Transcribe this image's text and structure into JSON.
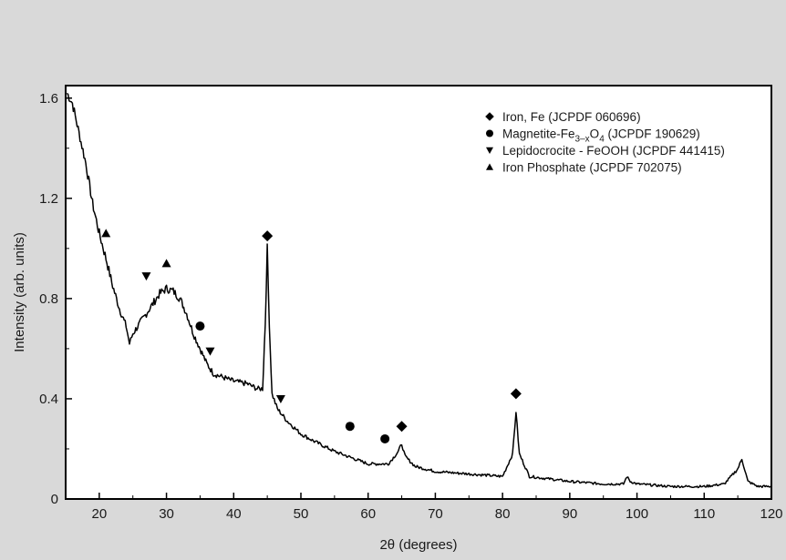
{
  "chart_data": {
    "type": "line",
    "xlabel": "2θ (degrees)",
    "ylabel": "Intensity (arb. units)",
    "xlim": [
      15,
      120
    ],
    "ylim": [
      0,
      1.65
    ],
    "x_ticks": [
      20,
      30,
      40,
      50,
      60,
      70,
      80,
      90,
      100,
      110,
      120
    ],
    "y_ticks": [
      0,
      0.4,
      0.8,
      1.2,
      1.6
    ],
    "y_tick_labels": [
      "0",
      "0.4",
      "0.8",
      "1.2",
      "1.6"
    ],
    "grid": false,
    "legend_position": "top-right",
    "legend": [
      {
        "marker": "diamond",
        "label_html": "Iron, Fe (JCPDF 060696)"
      },
      {
        "marker": "circle",
        "label_html": "Magnetite-Fe<tspan font-size=\"10\" dy=\"4\">3–x</tspan><tspan dy=\"-4\">O</tspan><tspan font-size=\"10\" dy=\"4\">4</tspan><tspan dy=\"-4\"> (JCPDF 190629)</tspan>"
      },
      {
        "marker": "triangle-down",
        "label_html": "Lepidocrocite - FeOOH (JCPDF 441415)"
      },
      {
        "marker": "triangle-up",
        "label_html": "Iron Phosphate (JCPDF 702075)"
      }
    ],
    "series": [
      {
        "values_xy": [
          [
            15.2,
            1.62
          ],
          [
            16,
            1.58
          ],
          [
            17,
            1.46
          ],
          [
            18,
            1.34
          ],
          [
            19,
            1.18
          ],
          [
            20,
            1.06
          ],
          [
            21,
            0.96
          ],
          [
            22,
            0.85
          ],
          [
            23,
            0.76
          ],
          [
            24,
            0.69
          ],
          [
            24.5,
            0.62
          ],
          [
            25,
            0.66
          ],
          [
            26,
            0.7
          ],
          [
            27,
            0.74
          ],
          [
            28,
            0.78
          ],
          [
            29,
            0.82
          ],
          [
            30,
            0.84
          ],
          [
            31,
            0.83
          ],
          [
            32,
            0.8
          ],
          [
            33,
            0.74
          ],
          [
            34,
            0.66
          ],
          [
            35,
            0.6
          ],
          [
            36,
            0.54
          ],
          [
            37,
            0.5
          ],
          [
            38,
            0.49
          ],
          [
            40,
            0.47
          ],
          [
            42,
            0.46
          ],
          [
            43.5,
            0.44
          ],
          [
            44.3,
            0.44
          ],
          [
            44.7,
            0.7
          ],
          [
            45,
            1.0
          ],
          [
            45.3,
            0.7
          ],
          [
            45.7,
            0.42
          ],
          [
            46.5,
            0.36
          ],
          [
            48,
            0.31
          ],
          [
            50,
            0.26
          ],
          [
            52,
            0.23
          ],
          [
            55,
            0.19
          ],
          [
            57,
            0.17
          ],
          [
            60,
            0.14
          ],
          [
            63,
            0.14
          ],
          [
            64.5,
            0.19
          ],
          [
            65,
            0.22
          ],
          [
            65.5,
            0.17
          ],
          [
            67,
            0.13
          ],
          [
            70,
            0.11
          ],
          [
            75,
            0.1
          ],
          [
            80,
            0.09
          ],
          [
            81.5,
            0.18
          ],
          [
            82,
            0.35
          ],
          [
            82.5,
            0.18
          ],
          [
            84,
            0.09
          ],
          [
            90,
            0.07
          ],
          [
            95,
            0.06
          ],
          [
            98,
            0.06
          ],
          [
            98.5,
            0.09
          ],
          [
            99,
            0.07
          ],
          [
            100,
            0.06
          ],
          [
            105,
            0.05
          ],
          [
            110,
            0.05
          ],
          [
            113,
            0.06
          ],
          [
            115,
            0.12
          ],
          [
            115.6,
            0.16
          ],
          [
            116.5,
            0.07
          ],
          [
            118,
            0.05
          ],
          [
            120,
            0.05
          ]
        ]
      }
    ],
    "annotations": [
      {
        "marker": "triangle-up",
        "x": 21,
        "y": 1.06
      },
      {
        "marker": "triangle-down",
        "x": 27,
        "y": 0.89
      },
      {
        "marker": "triangle-up",
        "x": 30,
        "y": 0.94
      },
      {
        "marker": "circle",
        "x": 35,
        "y": 0.69
      },
      {
        "marker": "triangle-down",
        "x": 36.5,
        "y": 0.59
      },
      {
        "marker": "diamond",
        "x": 45,
        "y": 1.05
      },
      {
        "marker": "triangle-down",
        "x": 47,
        "y": 0.4
      },
      {
        "marker": "circle",
        "x": 57.3,
        "y": 0.29
      },
      {
        "marker": "circle",
        "x": 62.5,
        "y": 0.24
      },
      {
        "marker": "diamond",
        "x": 65,
        "y": 0.29
      },
      {
        "marker": "diamond",
        "x": 82,
        "y": 0.42
      }
    ]
  }
}
